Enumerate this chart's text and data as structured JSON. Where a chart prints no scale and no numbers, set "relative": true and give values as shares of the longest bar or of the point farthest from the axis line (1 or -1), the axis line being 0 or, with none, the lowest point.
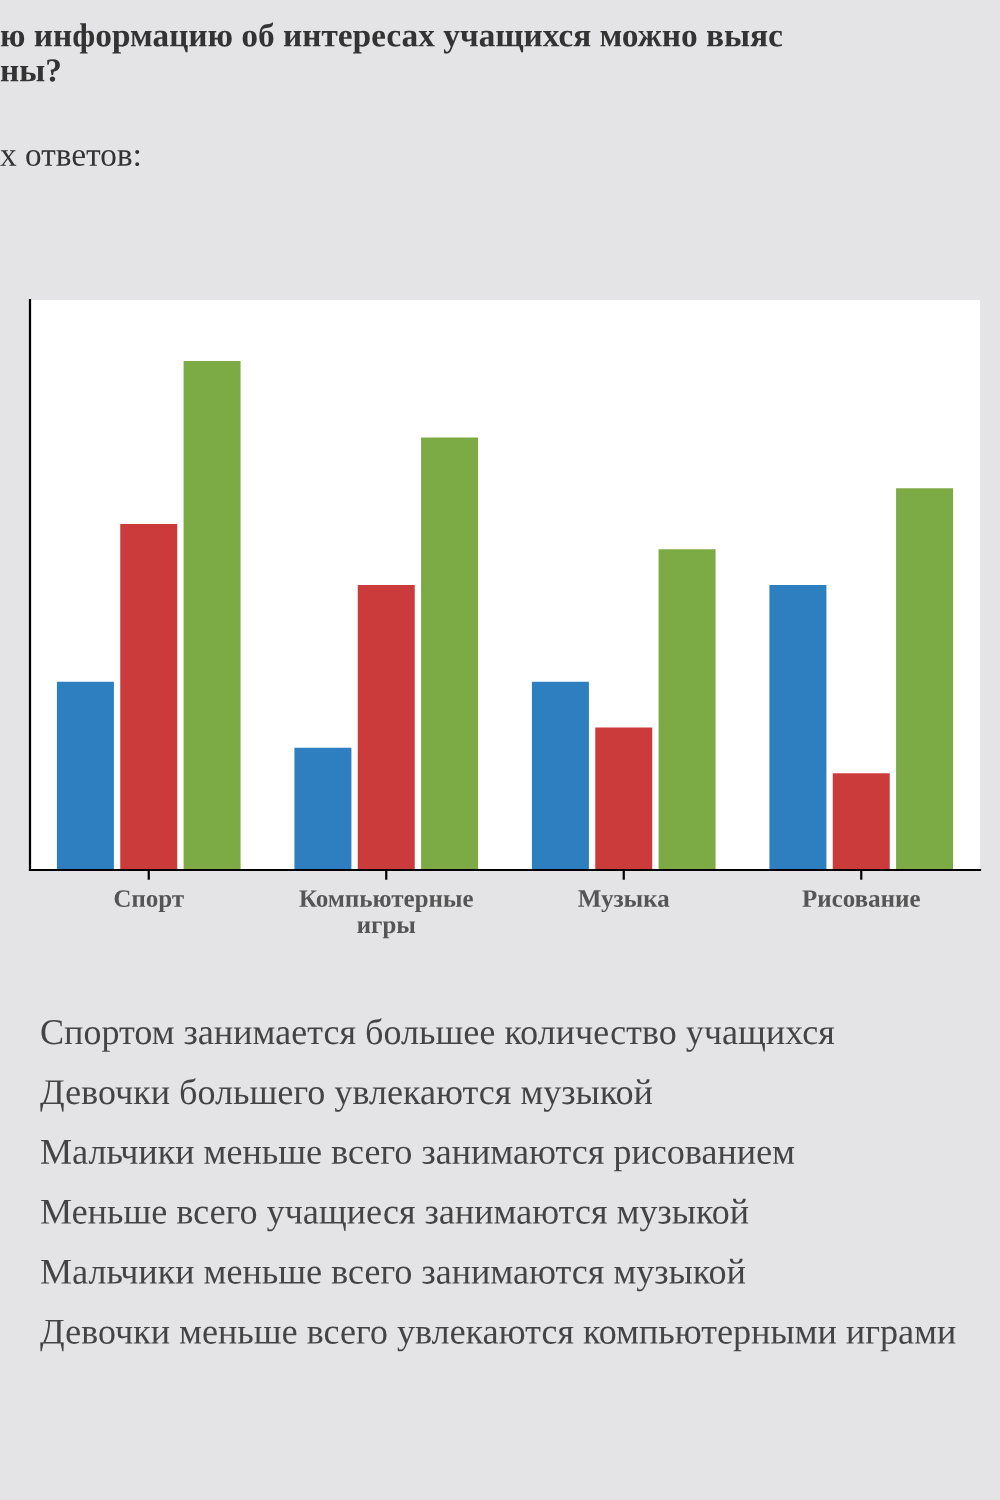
{
  "chart_data": {
    "type": "bar",
    "title": "ю информацию об интересах учащихся можно выяс\nны?",
    "subtitle": "х ответов:",
    "relative": true,
    "categories": [
      "Спорт",
      "Компьютерные\nигры",
      "Музыка",
      "Рисование"
    ],
    "series": [
      {
        "color": "#2e7fc0",
        "values": [
          0.37,
          0.24,
          0.37,
          0.56
        ]
      },
      {
        "color": "#cc3b3b",
        "values": [
          0.68,
          0.56,
          0.28,
          0.19
        ]
      },
      {
        "color": "#7cab45",
        "values": [
          1,
          0.85,
          0.63,
          0.75
        ]
      }
    ],
    "annotations": [
      "Спортом занимается большее количество учащихся",
      "Девочки большего увлекаются музыкой",
      "Мальчики меньше всего занимаются рисованием",
      "Меньше всего учащиеся занимаются музыкой",
      "Мальчики меньше всего занимаются музыкой",
      "Девочки меньше всего увлекаются компьютерными играми"
    ]
  }
}
